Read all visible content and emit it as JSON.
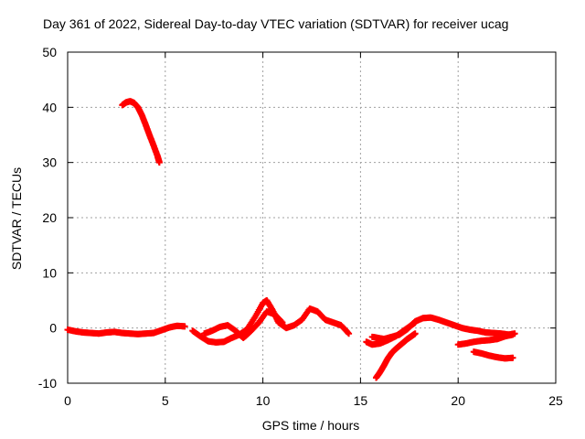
{
  "chart_data": {
    "type": "scatter",
    "title": "Day 361 of 2022, Sidereal Day-to-day VTEC variation (SDTVAR) for receiver ucag",
    "xlabel": "GPS time / hours",
    "ylabel": "SDTVAR / TECUs",
    "xlim": [
      0,
      25
    ],
    "ylim": [
      -10,
      50
    ],
    "xticks": [
      0,
      5,
      10,
      15,
      20,
      25
    ],
    "yticks": [
      -10,
      0,
      10,
      20,
      30,
      40,
      50
    ],
    "grid": true,
    "marker": "+",
    "color": "#ff0000",
    "series": [
      {
        "name": "seg1",
        "x": [
          0.0,
          0.4,
          0.8,
          1.2,
          1.6,
          2.0,
          2.4,
          2.8,
          3.2,
          3.6,
          4.0,
          4.4,
          4.8,
          5.2,
          5.6,
          6.0
        ],
        "y": [
          -0.3,
          -0.6,
          -0.8,
          -0.9,
          -1.0,
          -0.8,
          -0.7,
          -0.9,
          -1.0,
          -1.1,
          -1.0,
          -0.9,
          -0.4,
          0.1,
          0.4,
          0.3
        ]
      },
      {
        "name": "seg2",
        "x": [
          2.8,
          3.0,
          3.2,
          3.4,
          3.6,
          3.8,
          4.0,
          4.2,
          4.4,
          4.6,
          4.7
        ],
        "y": [
          40.4,
          40.9,
          41.1,
          40.8,
          40.0,
          38.6,
          36.8,
          34.9,
          33.1,
          31.2,
          30.0
        ]
      },
      {
        "name": "seg3",
        "x": [
          6.4,
          6.8,
          7.2,
          7.6,
          8.0,
          8.4,
          8.8,
          9.2,
          9.6,
          10.0,
          10.2,
          10.5,
          10.8,
          11.2,
          11.6,
          12.0,
          12.4,
          12.8,
          13.2,
          13.6,
          14.0,
          14.4
        ],
        "y": [
          -0.5,
          -1.5,
          -2.4,
          -2.6,
          -2.5,
          -1.8,
          -1.2,
          -0.2,
          2.0,
          4.5,
          5.0,
          3.2,
          1.0,
          0.0,
          0.5,
          1.5,
          3.5,
          3.0,
          1.5,
          1.0,
          0.5,
          -1.0
        ]
      },
      {
        "name": "seg4",
        "x": [
          7.0,
          7.4,
          7.8,
          8.2,
          8.6,
          9.0,
          9.4,
          9.8,
          10.2,
          10.6,
          11.0
        ],
        "y": [
          -1.0,
          -0.5,
          0.2,
          0.5,
          -0.5,
          -1.8,
          -0.5,
          1.0,
          3.0,
          2.5,
          1.0
        ]
      },
      {
        "name": "seg5",
        "x": [
          15.6,
          15.9,
          16.2,
          16.6,
          17.0,
          17.4,
          17.8,
          18.2,
          18.6,
          19.0,
          19.4,
          19.8,
          20.2,
          20.6,
          21.0,
          21.4,
          21.8,
          22.2,
          22.6,
          22.9
        ],
        "y": [
          -1.6,
          -1.8,
          -2.0,
          -1.6,
          -1.2,
          -0.2,
          1.2,
          1.8,
          1.9,
          1.5,
          1.0,
          0.5,
          0.0,
          -0.3,
          -0.5,
          -0.8,
          -0.9,
          -1.0,
          -1.2,
          -1.0
        ]
      },
      {
        "name": "seg6",
        "x": [
          15.8,
          16.0,
          16.2,
          16.4,
          16.6,
          16.8,
          17.0,
          17.2,
          17.4,
          17.6,
          17.8
        ],
        "y": [
          -9.0,
          -8.0,
          -6.8,
          -5.5,
          -4.5,
          -3.8,
          -3.2,
          -2.6,
          -2.0,
          -1.5,
          -1.0
        ]
      },
      {
        "name": "seg7",
        "x": [
          15.3,
          15.6,
          16.0,
          16.4,
          16.8,
          17.2,
          17.6,
          17.8
        ],
        "y": [
          -2.5,
          -3.0,
          -2.8,
          -2.2,
          -1.5,
          -0.5,
          0.5,
          1.0
        ]
      },
      {
        "name": "seg8",
        "x": [
          20.0,
          20.4,
          20.8,
          21.2,
          21.6,
          22.0,
          22.4,
          22.8
        ],
        "y": [
          -3.0,
          -2.8,
          -2.5,
          -2.3,
          -2.2,
          -2.0,
          -1.5,
          -1.2
        ]
      },
      {
        "name": "seg9",
        "x": [
          20.8,
          21.2,
          21.6,
          22.0,
          22.4,
          22.8
        ],
        "y": [
          -4.3,
          -4.6,
          -5.0,
          -5.3,
          -5.5,
          -5.4
        ]
      }
    ]
  }
}
